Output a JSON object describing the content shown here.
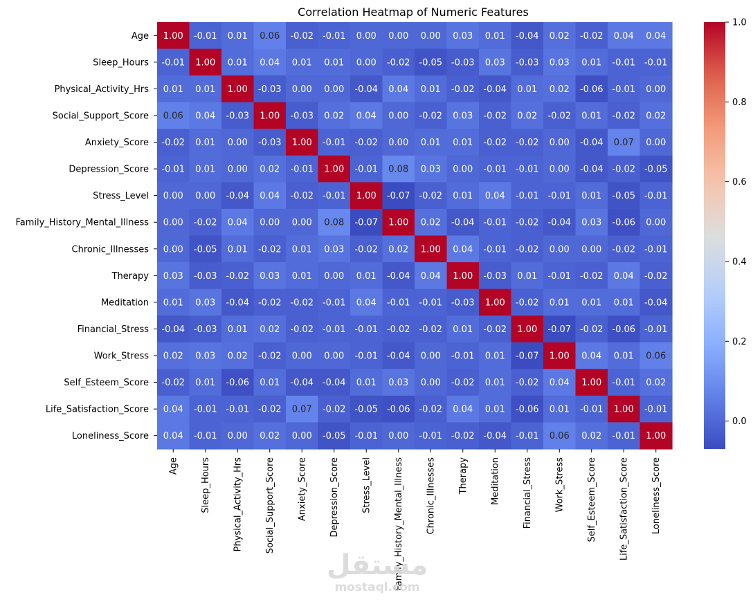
{
  "chart_data": {
    "type": "heatmap",
    "title": "Correlation Heatmap of Numeric Features",
    "xlabel": "",
    "ylabel": "",
    "labels": [
      "Age",
      "Sleep_Hours",
      "Physical_Activity_Hrs",
      "Social_Support_Score",
      "Anxiety_Score",
      "Depression_Score",
      "Stress_Level",
      "Family_History_Mental_Illness",
      "Chronic_Illnesses",
      "Therapy",
      "Meditation",
      "Financial_Stress",
      "Work_Stress",
      "Self_Esteem_Score",
      "Life_Satisfaction_Score",
      "Loneliness_Score"
    ],
    "matrix": [
      [
        1.0,
        -0.01,
        0.01,
        0.06,
        -0.02,
        -0.01,
        0.0,
        -0.0,
        0.0,
        0.03,
        0.01,
        -0.04,
        0.02,
        -0.02,
        0.04,
        0.04
      ],
      [
        -0.01,
        1.0,
        0.01,
        0.04,
        0.01,
        0.01,
        -0.0,
        -0.02,
        -0.05,
        -0.03,
        0.03,
        -0.03,
        0.03,
        0.01,
        -0.01,
        -0.01
      ],
      [
        0.01,
        0.01,
        1.0,
        -0.03,
        0.0,
        -0.0,
        -0.04,
        0.04,
        0.01,
        -0.02,
        -0.04,
        0.01,
        0.02,
        -0.06,
        -0.01,
        -0.0
      ],
      [
        0.06,
        0.04,
        -0.03,
        1.0,
        -0.03,
        0.02,
        0.04,
        -0.0,
        -0.02,
        0.03,
        -0.02,
        0.02,
        -0.02,
        0.01,
        -0.02,
        0.02
      ],
      [
        -0.02,
        0.01,
        0.0,
        -0.03,
        1.0,
        -0.01,
        -0.02,
        0.0,
        0.01,
        0.01,
        -0.02,
        -0.02,
        -0.0,
        -0.04,
        0.07,
        0.0
      ],
      [
        -0.01,
        0.01,
        -0.0,
        0.02,
        -0.01,
        1.0,
        -0.01,
        0.08,
        0.03,
        -0.0,
        -0.01,
        -0.01,
        -0.0,
        -0.04,
        -0.02,
        -0.05
      ],
      [
        0.0,
        -0.0,
        -0.04,
        0.04,
        -0.02,
        -0.01,
        1.0,
        -0.07,
        -0.02,
        0.01,
        0.04,
        -0.01,
        -0.01,
        0.01,
        -0.05,
        -0.01
      ],
      [
        -0.0,
        -0.02,
        0.04,
        -0.0,
        0.0,
        0.08,
        -0.07,
        1.0,
        0.02,
        -0.04,
        -0.01,
        -0.02,
        -0.04,
        0.03,
        -0.06,
        0.0
      ],
      [
        0.0,
        -0.05,
        0.01,
        -0.02,
        0.01,
        0.03,
        -0.02,
        0.02,
        1.0,
        0.04,
        -0.01,
        -0.02,
        0.0,
        -0.0,
        -0.02,
        -0.01
      ],
      [
        0.03,
        -0.03,
        -0.02,
        0.03,
        0.01,
        -0.0,
        0.01,
        -0.04,
        0.04,
        1.0,
        -0.03,
        0.01,
        -0.01,
        -0.02,
        0.04,
        -0.02
      ],
      [
        0.01,
        0.03,
        -0.04,
        -0.02,
        -0.02,
        -0.01,
        0.04,
        -0.01,
        -0.01,
        -0.03,
        1.0,
        -0.02,
        0.01,
        0.01,
        0.01,
        -0.04
      ],
      [
        -0.04,
        -0.03,
        0.01,
        0.02,
        -0.02,
        -0.01,
        -0.01,
        -0.02,
        -0.02,
        0.01,
        -0.02,
        1.0,
        -0.07,
        -0.02,
        -0.06,
        -0.01
      ],
      [
        0.02,
        0.03,
        0.02,
        -0.02,
        -0.0,
        -0.0,
        -0.01,
        -0.04,
        0.0,
        -0.01,
        0.01,
        -0.07,
        1.0,
        0.04,
        0.01,
        0.06
      ],
      [
        -0.02,
        0.01,
        -0.06,
        0.01,
        -0.04,
        -0.04,
        0.01,
        0.03,
        -0.0,
        -0.02,
        0.01,
        -0.02,
        0.04,
        1.0,
        -0.01,
        0.02
      ],
      [
        0.04,
        -0.01,
        -0.01,
        -0.02,
        0.07,
        -0.02,
        -0.05,
        -0.06,
        -0.02,
        0.04,
        0.01,
        -0.06,
        0.01,
        -0.01,
        1.0,
        -0.01
      ],
      [
        0.04,
        -0.01,
        -0.0,
        0.02,
        0.0,
        -0.05,
        -0.01,
        0.0,
        -0.01,
        -0.02,
        -0.04,
        -0.01,
        0.06,
        0.02,
        -0.01,
        1.0
      ]
    ],
    "colormap": "coolwarm",
    "value_range": [
      -0.07,
      1.0
    ],
    "colorbar_ticks": [
      "0.0",
      "0.2",
      "0.4",
      "0.6",
      "0.8",
      "1.0"
    ],
    "colorbar_tick_values": [
      0.0,
      0.2,
      0.4,
      0.6,
      0.8,
      1.0
    ],
    "annotation_format": "2 decimals"
  },
  "watermark": {
    "logo": "مستقل",
    "url": "mostaql.com"
  }
}
